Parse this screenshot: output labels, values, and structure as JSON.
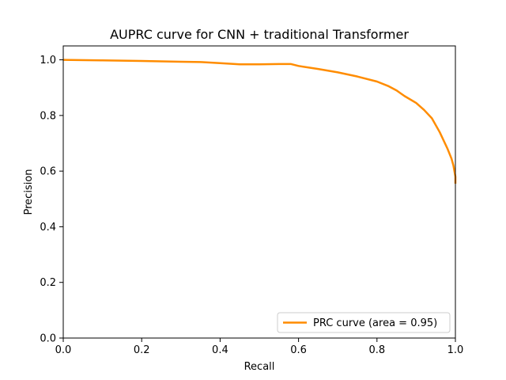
{
  "chart_data": {
    "type": "line",
    "title": "AUPRC curve for CNN + traditional Transformer",
    "xlabel": "Recall",
    "ylabel": "Precision",
    "xlim": [
      0.0,
      1.0
    ],
    "ylim": [
      0.0,
      1.05
    ],
    "xticks": [
      0.0,
      0.2,
      0.4,
      0.6,
      0.8,
      1.0
    ],
    "xtick_labels": [
      "0.0",
      "0.2",
      "0.4",
      "0.6",
      "0.8",
      "1.0"
    ],
    "yticks": [
      0.0,
      0.2,
      0.4,
      0.6,
      0.8,
      1.0
    ],
    "ytick_labels": [
      "0.0",
      "0.2",
      "0.4",
      "0.6",
      "0.8",
      "1.0"
    ],
    "grid": false,
    "legend_position": "lower-right",
    "series": [
      {
        "name": "PRC curve (area = 0.95)",
        "color": "#ff8c00",
        "x": [
          0.0,
          0.1,
          0.2,
          0.3,
          0.35,
          0.4,
          0.45,
          0.5,
          0.55,
          0.58,
          0.6,
          0.65,
          0.7,
          0.75,
          0.8,
          0.83,
          0.85,
          0.87,
          0.9,
          0.92,
          0.94,
          0.96,
          0.98,
          0.99,
          0.995,
          1.0,
          1.0
        ],
        "y": [
          1.0,
          0.998,
          0.996,
          0.993,
          0.992,
          0.988,
          0.984,
          0.984,
          0.985,
          0.985,
          0.978,
          0.967,
          0.955,
          0.94,
          0.922,
          0.905,
          0.89,
          0.87,
          0.845,
          0.82,
          0.79,
          0.74,
          0.68,
          0.645,
          0.62,
          0.58,
          0.555
        ]
      }
    ]
  }
}
